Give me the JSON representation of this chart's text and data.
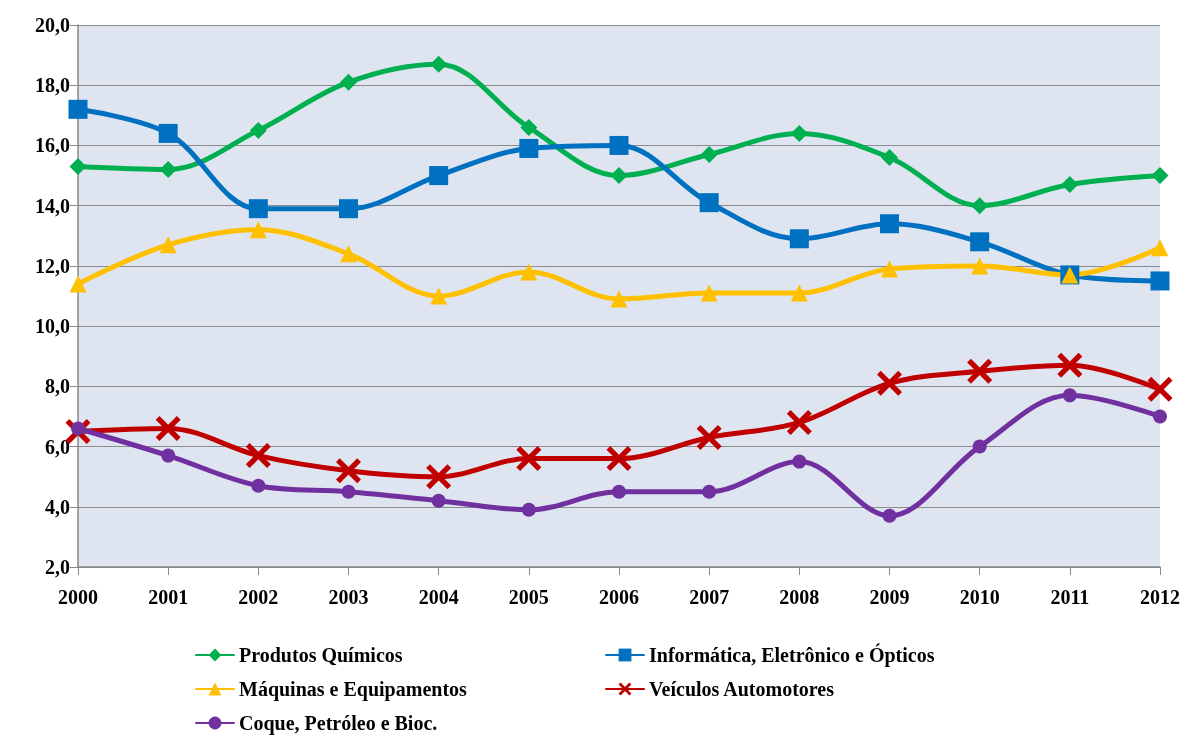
{
  "chart_data": {
    "type": "line",
    "categories": [
      "2000",
      "2001",
      "2002",
      "2003",
      "2004",
      "2005",
      "2006",
      "2007",
      "2008",
      "2009",
      "2010",
      "2011",
      "2012"
    ],
    "series": [
      {
        "name": "Produtos Químicos",
        "color": "#00b050",
        "marker": "diamond",
        "values": [
          15.3,
          15.2,
          16.5,
          18.1,
          18.7,
          16.6,
          15.0,
          15.7,
          16.4,
          15.6,
          14.0,
          14.7,
          15.0
        ]
      },
      {
        "name": "Informática, Eletrônico e Ópticos",
        "color": "#0070c0",
        "marker": "square",
        "values": [
          17.2,
          16.4,
          13.9,
          13.9,
          15.0,
          15.9,
          16.0,
          14.1,
          12.9,
          13.4,
          12.8,
          11.7,
          11.5
        ]
      },
      {
        "name": "Máquinas e Equipamentos",
        "color": "#ffc000",
        "marker": "triangle",
        "values": [
          11.4,
          12.7,
          13.2,
          12.4,
          11.0,
          11.8,
          10.9,
          11.1,
          11.1,
          11.9,
          12.0,
          11.7,
          12.6
        ]
      },
      {
        "name": "Veículos Automotores",
        "color": "#c00000",
        "marker": "cross",
        "values": [
          6.5,
          6.6,
          5.7,
          5.2,
          5.0,
          5.6,
          5.6,
          6.3,
          6.8,
          8.1,
          8.5,
          8.7,
          7.9
        ]
      },
      {
        "name": "Coque, Petróleo e Bioc.",
        "color": "#7030a0",
        "marker": "circle",
        "values": [
          6.6,
          5.7,
          4.7,
          4.5,
          4.2,
          3.9,
          4.5,
          4.5,
          5.5,
          3.7,
          6.0,
          7.7,
          7.0
        ]
      }
    ],
    "ylim": [
      2,
      20
    ],
    "yticks": [
      {
        "value": 2,
        "label": "2,0"
      },
      {
        "value": 4,
        "label": "4,0"
      },
      {
        "value": 6,
        "label": "6,0"
      },
      {
        "value": 8,
        "label": "8,0"
      },
      {
        "value": 10,
        "label": "10,0"
      },
      {
        "value": 12,
        "label": "12,0"
      },
      {
        "value": 14,
        "label": "14,0"
      },
      {
        "value": 16,
        "label": "16,0"
      },
      {
        "value": 18,
        "label": "18,0"
      },
      {
        "value": 20,
        "label": "20,0"
      }
    ],
    "grid": "y",
    "legend": "bottom",
    "line_style": "solid"
  }
}
